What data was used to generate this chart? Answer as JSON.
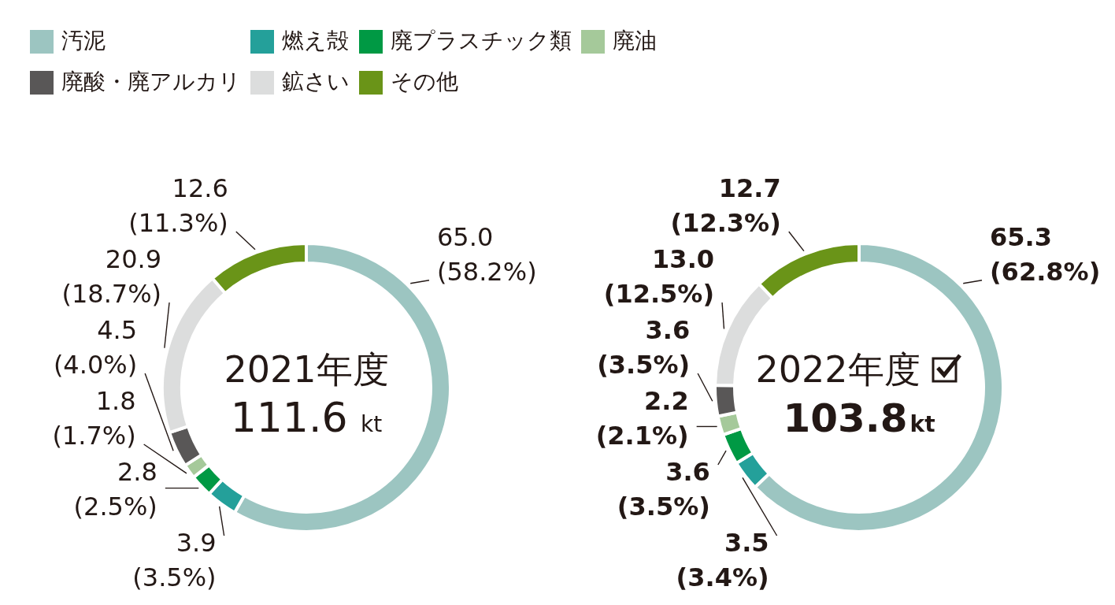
{
  "chart_data": [
    {
      "type": "donut",
      "categories": [
        "汚泥",
        "燃え殻",
        "廃プラスチック類",
        "廃油",
        "廃酸・廃アルカリ",
        "鉱さい",
        "その他"
      ],
      "values": [
        65.0,
        3.9,
        2.8,
        1.8,
        4.5,
        20.9,
        12.6
      ],
      "colors": [
        "#9cc5c1",
        "#24a09a",
        "#009944",
        "#a5c99a",
        "#595757",
        "#dcdddd",
        "#6a9418"
      ],
      "value_labels": [
        "65.0 (58.2%)",
        "3.9 (3.5%)",
        "2.8 (2.5%)",
        "1.8 (1.7%)",
        "4.5 (4.0%)",
        "20.9 (18.7%)",
        "12.6 (11.3%)"
      ],
      "annotations": [
        "2021年度",
        "111.6 kt"
      ],
      "legend": "top"
    },
    {
      "type": "donut",
      "values": [
        65.3,
        3.5,
        3.6,
        2.2,
        3.6,
        13.0,
        12.7
      ],
      "colors": [
        "#9cc5c1",
        "#24a09a",
        "#009944",
        "#a5c99a",
        "#595757",
        "#dcdddd",
        "#6a9418"
      ],
      "value_labels": [
        "65.3 (62.8%)",
        "3.5 (3.4%)",
        "3.6 (3.5%)",
        "2.2 (2.1%)",
        "3.6 (3.5%)",
        "13.0 (12.5%)",
        "12.7 (12.3%)"
      ],
      "annotations": [
        "2022年度",
        "103.8kt"
      ]
    }
  ]
}
